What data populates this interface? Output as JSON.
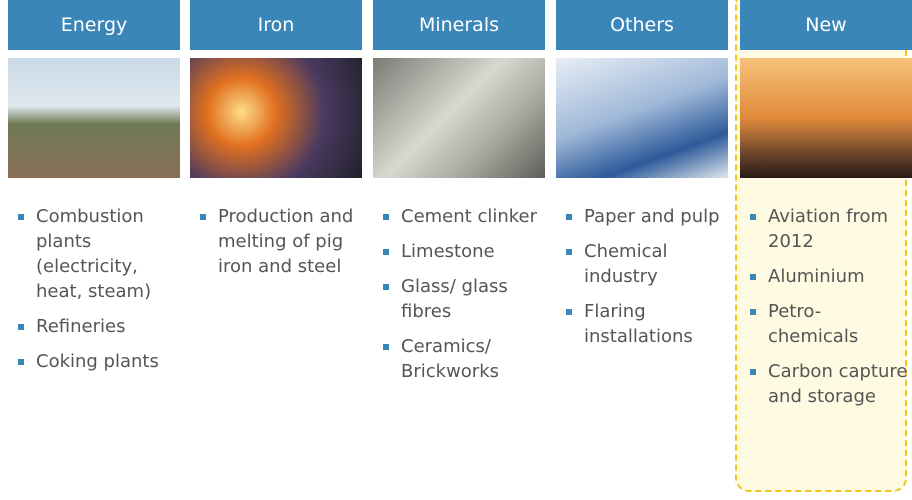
{
  "columns": [
    {
      "header": "Energy",
      "items": [
        "Combustion plants (electricity, heat, steam)",
        "Refineries",
        "Coking plants"
      ]
    },
    {
      "header": "Iron",
      "items": [
        "Production and melting of pig iron and steel"
      ]
    },
    {
      "header": "Minerals",
      "items": [
        "Cement clinker",
        "Limestone",
        "Glass/ glass fibres",
        "Ceramics/ Brickworks"
      ]
    },
    {
      "header": "Others",
      "items": [
        "Paper and pulp",
        "Chemical industry",
        "Flaring installations"
      ]
    },
    {
      "header": "New",
      "items": [
        "Aviation from 2012",
        "Aluminium",
        "Petro-chemicals",
        "Carbon capture and storage"
      ]
    }
  ]
}
